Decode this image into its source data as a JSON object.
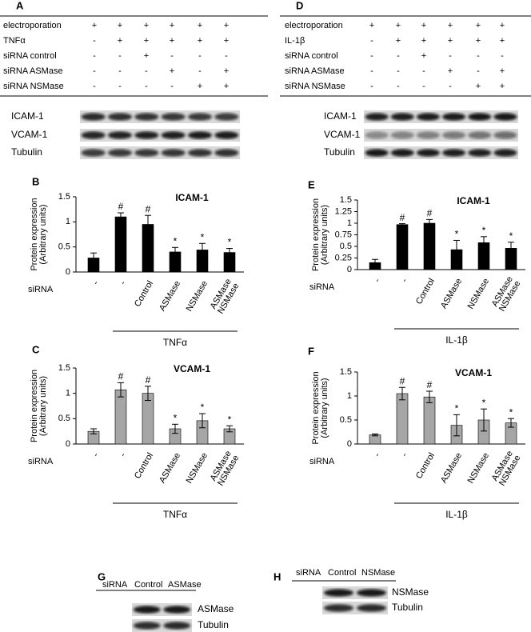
{
  "panels": {
    "A": {
      "letter": "A",
      "rows": [
        {
          "label": "electroporation",
          "cells": [
            "+",
            "+",
            "+",
            "+",
            "+",
            "+"
          ]
        },
        {
          "label": "TNFα",
          "cells": [
            "-",
            "+",
            "+",
            "+",
            "+",
            "+"
          ]
        },
        {
          "label": "siRNA  control",
          "cells": [
            "-",
            "-",
            "+",
            "-",
            "-",
            "-"
          ]
        },
        {
          "label": "siRNA  ASMase",
          "cells": [
            "-",
            "-",
            "-",
            "+",
            "-",
            "+"
          ]
        },
        {
          "label": "siRNA  NSMase",
          "cells": [
            "-",
            "-",
            "-",
            "-",
            "+",
            "+"
          ]
        }
      ],
      "blot_labels": [
        "ICAM-1",
        "VCAM-1",
        "Tubulin"
      ]
    },
    "D": {
      "letter": "D",
      "rows": [
        {
          "label": "electroporation",
          "cells": [
            "+",
            "+",
            "+",
            "+",
            "+",
            "+"
          ]
        },
        {
          "label": "IL-1β",
          "cells": [
            "-",
            "+",
            "+",
            "+",
            "+",
            "+"
          ]
        },
        {
          "label": "siRNA  control",
          "cells": [
            "-",
            "-",
            "+",
            "-",
            "-",
            "-"
          ]
        },
        {
          "label": "siRNA  ASMase",
          "cells": [
            "-",
            "-",
            "-",
            "+",
            "-",
            "+"
          ]
        },
        {
          "label": "siRNA  NSMase",
          "cells": [
            "-",
            "-",
            "-",
            "-",
            "+",
            "+"
          ]
        }
      ],
      "blot_labels": [
        "ICAM-1",
        "VCAM-1",
        "Tubulin"
      ]
    },
    "G": {
      "letter": "G",
      "header": [
        "siRNA",
        "Control",
        "ASMase"
      ],
      "blot_labels": [
        "ASMase",
        "Tubulin"
      ]
    },
    "H": {
      "letter": "H",
      "header": [
        "siRNA",
        "Control",
        "NSMase"
      ],
      "blot_labels": [
        "NSMase",
        "Tubulin"
      ]
    }
  },
  "chart_data": [
    {
      "type": "bar",
      "panel": "B",
      "title": "ICAM-1",
      "ylabel": [
        "Protein expression",
        "(Arbitrary units)"
      ],
      "xlabel": "siRNA",
      "group_label": "TNFα",
      "categories": [
        "-",
        "-",
        "Control",
        "ASMase",
        "NSMase",
        "ASMase NSMase"
      ],
      "values": [
        0.28,
        1.1,
        0.95,
        0.4,
        0.44,
        0.39
      ],
      "errors": [
        0.1,
        0.08,
        0.18,
        0.09,
        0.13,
        0.08
      ],
      "annotations": [
        null,
        "#",
        "#",
        "*",
        "*",
        "*"
      ],
      "color": "#000000",
      "ylim": [
        0,
        1.5
      ],
      "yticks": [
        0,
        0.5,
        1,
        1.5
      ]
    },
    {
      "type": "bar",
      "panel": "C",
      "title": "VCAM-1",
      "ylabel": [
        "Protein expression",
        "(Arbitrary units)"
      ],
      "xlabel": "siRNA",
      "group_label": "TNFα",
      "categories": [
        "-",
        "-",
        "Control",
        "ASMase",
        "NSMase",
        "ASMase NSMase"
      ],
      "values": [
        0.25,
        1.07,
        1.0,
        0.3,
        0.46,
        0.3
      ],
      "errors": [
        0.05,
        0.14,
        0.14,
        0.09,
        0.14,
        0.06
      ],
      "annotations": [
        null,
        "#",
        "#",
        "*",
        "*",
        "*"
      ],
      "color": "#a6a6a6",
      "ylim": [
        0,
        1.5
      ],
      "yticks": [
        0,
        0.5,
        1,
        1.5
      ]
    },
    {
      "type": "bar",
      "panel": "E",
      "title": "ICAM-1",
      "ylabel": [
        "Protein expression",
        "(Arbitrary units)"
      ],
      "xlabel": "siRNA",
      "group_label": "IL-1β",
      "categories": [
        "-",
        "-",
        "Control",
        "ASMase",
        "NSMase",
        "ASMase NSMase"
      ],
      "values": [
        0.15,
        0.97,
        1.0,
        0.43,
        0.58,
        0.46
      ],
      "errors": [
        0.07,
        0.02,
        0.08,
        0.2,
        0.13,
        0.13
      ],
      "annotations": [
        null,
        "#",
        "#",
        "*",
        "*",
        "*"
      ],
      "color": "#000000",
      "ylim": [
        0,
        1.5
      ],
      "yticks": [
        0,
        0.25,
        0.5,
        0.75,
        1,
        1.25,
        1.5
      ]
    },
    {
      "type": "bar",
      "panel": "F",
      "title": "VCAM-1",
      "ylabel": [
        "Protein expression",
        "(Arbitrary units)"
      ],
      "xlabel": "siRNA",
      "group_label": "IL-1β",
      "categories": [
        "-",
        "-",
        "Control",
        "ASMase",
        "NSMase",
        "ASMase NSMase"
      ],
      "values": [
        0.19,
        1.05,
        0.98,
        0.39,
        0.5,
        0.44
      ],
      "errors": [
        0.02,
        0.13,
        0.12,
        0.22,
        0.23,
        0.09
      ],
      "annotations": [
        null,
        "#",
        "#",
        "*",
        "*",
        "*"
      ],
      "color": "#a6a6a6",
      "ylim": [
        0,
        1.5
      ],
      "yticks": [
        0,
        0.5,
        1,
        1.5
      ]
    }
  ]
}
